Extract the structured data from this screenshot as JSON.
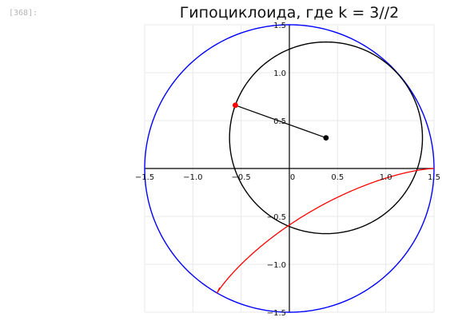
{
  "cell": {
    "prompt": "[368]:"
  },
  "chart_data": {
    "type": "line",
    "title": "Гипоциклоида, где k = 3//2",
    "xlim": [
      -1.5,
      1.5
    ],
    "ylim": [
      -1.5,
      1.5
    ],
    "x_ticks": [
      -1.5,
      -1.0,
      -0.5,
      0,
      0.5,
      1.0,
      1.5
    ],
    "y_ticks": [
      -1.5,
      -1.0,
      -0.5,
      0.5,
      1.0,
      1.5
    ],
    "tick_labels": {
      "x": [
        "−1.5",
        "−1.0",
        "−0.5",
        "0",
        "0.5",
        "1.0",
        "1.5"
      ],
      "y": [
        "−1.5",
        "−1.0",
        "−0.5",
        "0.5",
        "1.0",
        "1.5"
      ]
    },
    "grid": true,
    "series": [
      {
        "kind": "circle",
        "role": "fixed-circle",
        "center": [
          0,
          0
        ],
        "radius": 1.5,
        "color": "#0000ff"
      },
      {
        "kind": "circle",
        "role": "rolling-circle",
        "center": [
          0.38,
          0.32
        ],
        "radius": 1.0,
        "color": "#000000"
      },
      {
        "kind": "segment",
        "role": "radius-line",
        "from": [
          0.38,
          0.32
        ],
        "to": [
          -0.56,
          0.66
        ],
        "color": "#000000"
      },
      {
        "kind": "point",
        "role": "center-point",
        "at": [
          0.38,
          0.32
        ],
        "color": "#000000"
      },
      {
        "kind": "point",
        "role": "tracing-point",
        "at": [
          -0.56,
          0.66
        ],
        "color": "#ff0000"
      },
      {
        "kind": "curve",
        "role": "hypocycloid",
        "equation": "x=(R-r)cos t + r cos((R-r)t/r), y=(R-r)sin t - r sin((R-r)t/r)",
        "R": 1.5,
        "r": 1.0,
        "t_range": [
          0,
          4.6
        ],
        "color": "#ff0000"
      }
    ],
    "colors": {
      "fixed": "#0000ff",
      "rolling": "#000000",
      "curve": "#ff0000",
      "grid": "#e8e8e8"
    }
  }
}
